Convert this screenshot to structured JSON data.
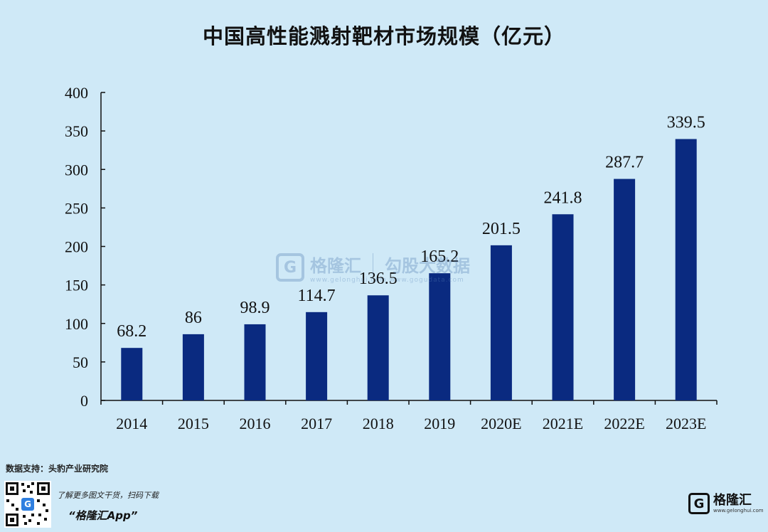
{
  "chart_data": {
    "type": "bar",
    "title": "中国高性能溅射靶材市场规模（亿元）",
    "categories": [
      "2014",
      "2015",
      "2016",
      "2017",
      "2018",
      "2019",
      "2020E",
      "2021E",
      "2022E",
      "2023E"
    ],
    "values": [
      68.2,
      86,
      98.9,
      114.7,
      136.5,
      165.2,
      201.5,
      241.8,
      287.7,
      339.5
    ],
    "value_labels": [
      "68.2",
      "86",
      "98.9",
      "114.7",
      "136.5",
      "165.2",
      "201.5",
      "241.8",
      "287.7",
      "339.5"
    ],
    "ylim": [
      0,
      400
    ],
    "yticks": [
      "0",
      "50",
      "100",
      "150",
      "200",
      "250",
      "300",
      "350",
      "400"
    ],
    "grid": false,
    "bar_color": "#0a2a80",
    "xlabel": "",
    "ylabel": ""
  },
  "footer": {
    "source": "数据支持：头豹产业研究院",
    "promo_line1": "了解更多图文干货，扫码下载",
    "promo_line2": "“格隆汇App”",
    "logo_mark": "G",
    "logo_text": "格隆汇",
    "logo_url": "www.gelonghui.com"
  },
  "watermark": {
    "mark": "G",
    "brand": "格隆汇",
    "product": "勾股大数据",
    "url": "www.gelonghui.com  www.gogudata.com"
  },
  "colors": {
    "background": "#cfe9f7",
    "bar": "#0a2a80"
  }
}
